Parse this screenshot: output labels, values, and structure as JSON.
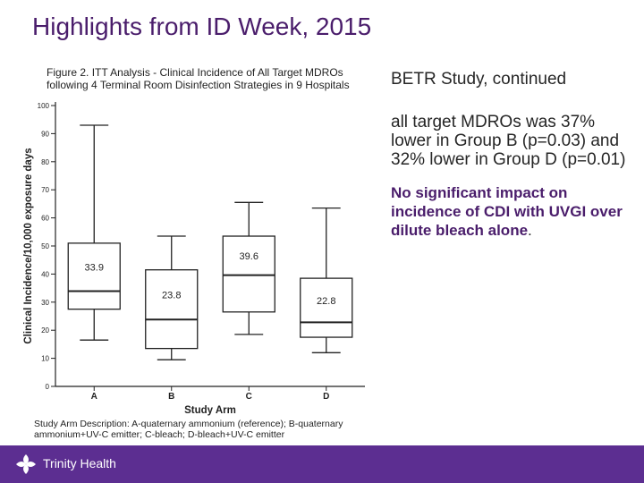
{
  "slide": {
    "title": "Highlights from ID Week, 2015"
  },
  "figure": {
    "caption": "Figure 2. ITT Analysis - Clinical Incidence of All Target MDROs following 4 Terminal Room Disinfection Strategies in 9 Hospitals",
    "footnote": "Study Arm Description: A-quaternary ammonium (reference); B-quaternary ammonium+UV-C emitter; C-bleach; D-bleach+UV-C emitter"
  },
  "chart_data": {
    "type": "box",
    "title": "",
    "xlabel": "Study Arm",
    "ylabel": "Clinical Incidence/10,000 exposure days",
    "ylim": [
      0,
      100
    ],
    "yticks": [
      0,
      10,
      20,
      30,
      40,
      50,
      60,
      70,
      80,
      90,
      100
    ],
    "grid": false,
    "categories": [
      "A",
      "B",
      "C",
      "D"
    ],
    "boxes": [
      {
        "category": "A",
        "min": 16.5,
        "q1": 27.5,
        "median": 33.9,
        "q3": 51,
        "max": 93,
        "label": "33.9"
      },
      {
        "category": "B",
        "min": 9.5,
        "q1": 13.5,
        "median": 23.8,
        "q3": 41.5,
        "max": 53.5,
        "label": "23.8"
      },
      {
        "category": "C",
        "min": 18.5,
        "q1": 26.5,
        "median": 39.6,
        "q3": 53.5,
        "max": 65.5,
        "label": "39.6"
      },
      {
        "category": "D",
        "min": 12,
        "q1": 17.5,
        "median": 22.8,
        "q3": 38.5,
        "max": 63.5,
        "label": "22.8"
      }
    ]
  },
  "text": {
    "subtitle": "BETR Study, continued",
    "finding": "all target MDROs was 37% lower in Group B (p=0.03) and 32% lower in Group D (p=0.01)",
    "note": "No significant impact on incidence of CDI with UVGI over dilute bleach alone",
    "note_end": "."
  },
  "footer": {
    "logo_text": "Trinity Health",
    "bar_color": "#5c2e91"
  },
  "colors": {
    "title": "#4a1d6b",
    "accent": "#4a1d6b"
  }
}
